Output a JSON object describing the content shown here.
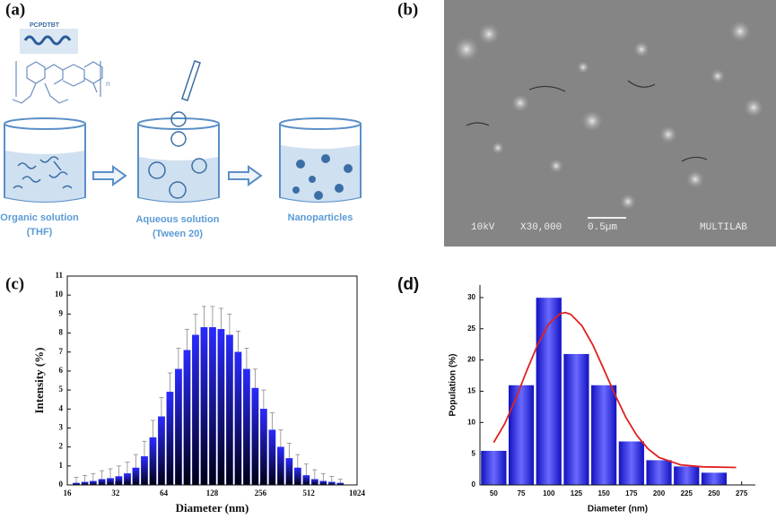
{
  "panel_a": {
    "label": "(a)",
    "polymer": "PCPDTBT",
    "repeat": "n",
    "steps": [
      {
        "name": "Organic solution",
        "note": "(THF)"
      },
      {
        "name": "Aqueous solution",
        "note": "(Tween 20)"
      },
      {
        "name": "Nanoparticles"
      }
    ]
  },
  "panel_b": {
    "label": "(b)",
    "sem_info": [
      "10kV",
      "X30,000",
      "0.5µm",
      "MULTILAB"
    ]
  },
  "chart_data": [
    {
      "type": "bar",
      "label": "(c)",
      "x_label": "Diameter (nm)",
      "y_label": "Intensity (%)",
      "log_x": true,
      "log_base": 2,
      "color": "#1414d8",
      "x": [
        18.2,
        20.6,
        23.2,
        26.3,
        29.7,
        33.5,
        37.9,
        42.8,
        48.4,
        54.7,
        61.8,
        69.8,
        78.9,
        89.2,
        100.8,
        113.9,
        128.7,
        145.4,
        164.3,
        185.7,
        209.8,
        237.1,
        267.9,
        302.8,
        342.1,
        386.6,
        436.8,
        493.6,
        557.8,
        630.3,
        712.3,
        804.9
      ],
      "values": [
        0.1,
        0.15,
        0.2,
        0.3,
        0.35,
        0.45,
        0.6,
        0.9,
        1.5,
        2.5,
        3.6,
        4.9,
        6.1,
        7.1,
        7.9,
        8.3,
        8.3,
        8.2,
        7.9,
        7.0,
        6.1,
        5.1,
        4.0,
        2.9,
        2.0,
        1.4,
        0.9,
        0.5,
        0.3,
        0.2,
        0.15,
        0.1
      ],
      "errors": [
        0.3,
        0.35,
        0.4,
        0.45,
        0.5,
        0.55,
        0.6,
        0.7,
        0.8,
        0.9,
        1.0,
        1.0,
        1.1,
        1.1,
        1.1,
        1.1,
        1.1,
        1.1,
        1.1,
        1.1,
        1.1,
        1.0,
        1.0,
        0.9,
        0.9,
        0.8,
        0.7,
        0.6,
        0.5,
        0.4,
        0.3,
        0.2
      ],
      "xlim": [
        16,
        1024
      ],
      "xticks": [
        16,
        32,
        64,
        128,
        256,
        512,
        1024
      ],
      "ylim": [
        0,
        11
      ],
      "yticks": [
        0,
        1,
        2,
        3,
        4,
        5,
        6,
        7,
        8,
        9,
        10,
        11
      ]
    },
    {
      "type": "histogram",
      "label": "(d)",
      "x_label": "Diameter (nm)",
      "y_label": "Population (%)",
      "color": "#2a2ae6",
      "bins": [
        37.5,
        62.5,
        87.5,
        112.5,
        137.5,
        162.5,
        187.5,
        212.5,
        237.5,
        262.5,
        287.5
      ],
      "values": [
        5.5,
        16,
        30,
        21,
        16,
        7,
        4,
        3,
        2,
        0
      ],
      "fit": {
        "color": "#e02020",
        "x": [
          50,
          60,
          70,
          80,
          90,
          100,
          110,
          115,
          120,
          130,
          140,
          150,
          160,
          170,
          180,
          190,
          200,
          220,
          240,
          270
        ],
        "values": [
          6.8,
          9.8,
          13.8,
          18.3,
          22.5,
          25.8,
          27.4,
          27.6,
          27.3,
          25.5,
          22.4,
          18.5,
          14.5,
          10.8,
          7.9,
          5.8,
          4.4,
          3.2,
          2.9,
          2.8
        ]
      },
      "xlim": [
        37.5,
        287.5
      ],
      "xticks": [
        50,
        75,
        100,
        125,
        150,
        175,
        200,
        225,
        250,
        275
      ],
      "ylim": [
        0,
        32
      ],
      "yticks": [
        0,
        5,
        10,
        15,
        20,
        25,
        30
      ]
    }
  ]
}
